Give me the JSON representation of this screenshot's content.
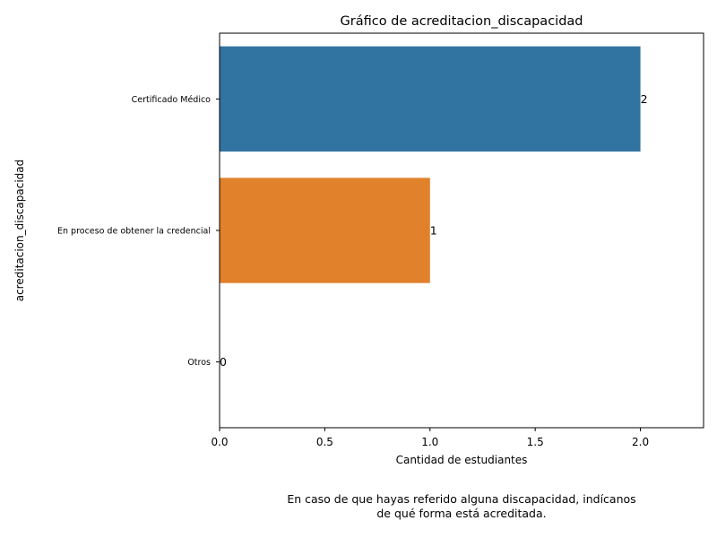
{
  "chart_data": {
    "type": "bar",
    "orientation": "horizontal",
    "title": "Gráfico de acreditacion_discapacidad",
    "xlabel": "Cantidad de estudiantes",
    "ylabel": "acreditacion_discapacidad",
    "categories": [
      "Certificado Médico",
      "En proceso de obtener la credencial",
      "Otros"
    ],
    "values": [
      2,
      1,
      0
    ],
    "value_labels": [
      "2",
      "1",
      "0"
    ],
    "colors": [
      "#3274a1",
      "#e1812c",
      "#3a923a"
    ],
    "xlim": [
      0,
      2.3
    ],
    "xticks": [
      0.0,
      0.5,
      1.0,
      1.5,
      2.0
    ],
    "xtick_labels": [
      "0.0",
      "0.5",
      "1.0",
      "1.5",
      "2.0"
    ],
    "grid": false
  },
  "caption": {
    "line1": "En caso de que hayas referido alguna discapacidad, indícanos",
    "line2": "de qué forma está acreditada."
  }
}
